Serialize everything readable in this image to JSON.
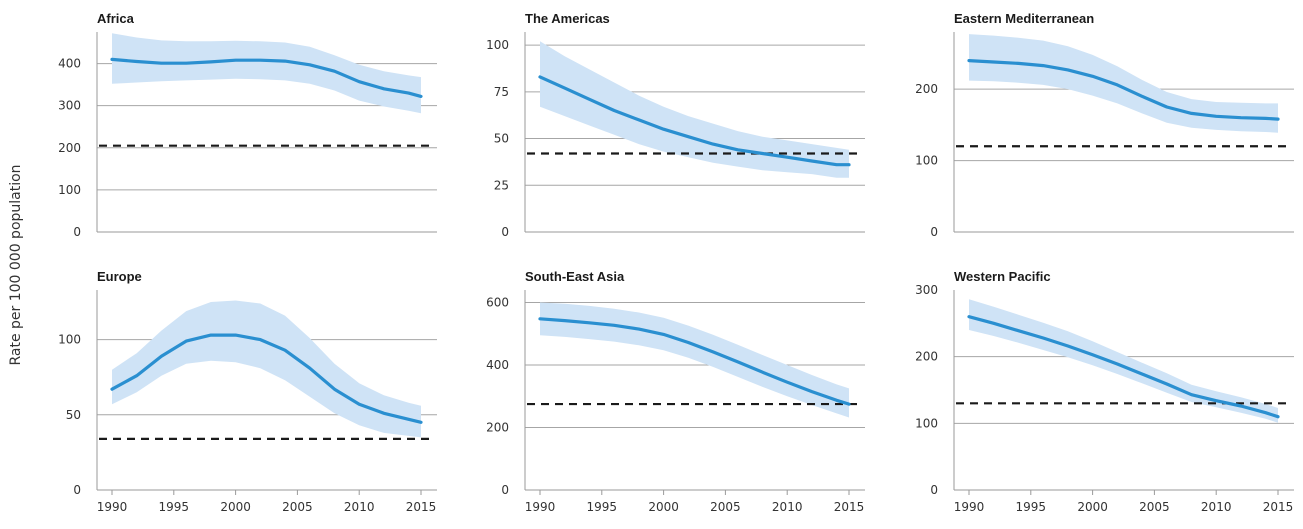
{
  "figure": {
    "ylabel": "Rate per 100 000 population",
    "colors": {
      "line": "#2a8fd0",
      "band": "#cfe3f6",
      "grid": "#a6a6a6",
      "axis": "#9a9a9a",
      "reference": "#1a1a1a"
    }
  },
  "chart_data": [
    {
      "type": "line",
      "title": "Africa",
      "xlim": [
        1990,
        2015
      ],
      "xticks": [
        1990,
        1995,
        2000,
        2005,
        2010,
        2015
      ],
      "show_xticks": false,
      "ylim": [
        0,
        475
      ],
      "yticks": [
        0,
        100,
        200,
        300,
        400
      ],
      "grid": [
        100,
        200,
        300,
        400
      ],
      "reference": 205,
      "x": [
        1990,
        1992,
        1994,
        1996,
        1998,
        2000,
        2002,
        2004,
        2006,
        2008,
        2010,
        2012,
        2014,
        2015
      ],
      "y": [
        410,
        405,
        401,
        401,
        404,
        408,
        408,
        406,
        397,
        382,
        357,
        340,
        330,
        322
      ],
      "lower": [
        352,
        355,
        358,
        360,
        362,
        364,
        363,
        360,
        352,
        336,
        312,
        298,
        288,
        282
      ],
      "upper": [
        472,
        462,
        455,
        453,
        453,
        454,
        453,
        450,
        440,
        420,
        397,
        382,
        372,
        368
      ]
    },
    {
      "type": "line",
      "title": "The Americas",
      "xlim": [
        1990,
        2015
      ],
      "xticks": [
        1990,
        1995,
        2000,
        2005,
        2010,
        2015
      ],
      "show_xticks": false,
      "ylim": [
        0,
        107
      ],
      "yticks": [
        0,
        25,
        50,
        75,
        100
      ],
      "grid": [
        25,
        50,
        75,
        100
      ],
      "reference": 42,
      "x": [
        1990,
        1992,
        1994,
        1996,
        1998,
        2000,
        2002,
        2004,
        2006,
        2008,
        2010,
        2012,
        2014,
        2015
      ],
      "y": [
        83,
        77,
        71,
        65,
        60,
        55,
        51,
        47,
        44,
        42,
        40,
        38,
        36,
        36
      ],
      "lower": [
        67,
        62,
        57,
        52,
        47,
        43,
        40,
        37,
        35,
        33,
        32,
        31,
        29,
        29
      ],
      "upper": [
        102,
        94,
        87,
        80,
        73,
        67,
        62,
        58,
        54,
        51,
        49,
        47,
        45,
        44
      ]
    },
    {
      "type": "line",
      "title": "Eastern Mediterranean",
      "xlim": [
        1990,
        2015
      ],
      "xticks": [
        1990,
        1995,
        2000,
        2005,
        2010,
        2015
      ],
      "show_xticks": false,
      "ylim": [
        0,
        280
      ],
      "yticks": [
        0,
        100,
        200
      ],
      "grid": [
        100,
        200
      ],
      "reference": 120,
      "x": [
        1990,
        1992,
        1994,
        1996,
        1998,
        2000,
        2002,
        2004,
        2006,
        2008,
        2010,
        2012,
        2014,
        2015
      ],
      "y": [
        240,
        238,
        236,
        233,
        227,
        218,
        206,
        190,
        175,
        166,
        162,
        160,
        159,
        158
      ],
      "lower": [
        212,
        211,
        209,
        206,
        200,
        191,
        180,
        166,
        153,
        146,
        143,
        141,
        140,
        139
      ],
      "upper": [
        277,
        275,
        272,
        268,
        260,
        248,
        232,
        213,
        196,
        186,
        182,
        181,
        180,
        180
      ]
    },
    {
      "type": "line",
      "title": "Europe",
      "xlim": [
        1990,
        2015
      ],
      "xticks": [
        1990,
        1995,
        2000,
        2005,
        2010,
        2015
      ],
      "show_xticks": true,
      "ylim": [
        0,
        133
      ],
      "yticks": [
        0,
        50,
        100
      ],
      "grid": [
        50,
        100
      ],
      "reference": 34,
      "x": [
        1990,
        1992,
        1994,
        1996,
        1998,
        2000,
        2002,
        2004,
        2006,
        2008,
        2010,
        2012,
        2014,
        2015
      ],
      "y": [
        67,
        76,
        89,
        99,
        103,
        103,
        100,
        93,
        81,
        67,
        57,
        51,
        47,
        45
      ],
      "lower": [
        57,
        65,
        76,
        84,
        86,
        85,
        81,
        73,
        62,
        51,
        43,
        38,
        36,
        35
      ],
      "upper": [
        80,
        91,
        106,
        119,
        125,
        126,
        124,
        116,
        101,
        84,
        71,
        63,
        58,
        56
      ]
    },
    {
      "type": "line",
      "title": "South-East Asia",
      "xlim": [
        1990,
        2015
      ],
      "xticks": [
        1990,
        1995,
        2000,
        2005,
        2010,
        2015
      ],
      "show_xticks": true,
      "ylim": [
        0,
        640
      ],
      "yticks": [
        0,
        200,
        400,
        600
      ],
      "grid": [
        200,
        400,
        600
      ],
      "reference": 275,
      "x": [
        1990,
        1992,
        1994,
        1996,
        1998,
        2000,
        2002,
        2004,
        2006,
        2008,
        2010,
        2012,
        2014,
        2015
      ],
      "y": [
        548,
        542,
        535,
        527,
        515,
        498,
        472,
        442,
        410,
        377,
        345,
        315,
        287,
        275
      ],
      "lower": [
        495,
        490,
        483,
        475,
        463,
        447,
        423,
        394,
        362,
        330,
        300,
        272,
        245,
        232
      ],
      "upper": [
        600,
        596,
        589,
        580,
        568,
        551,
        526,
        497,
        465,
        432,
        400,
        368,
        338,
        325
      ]
    },
    {
      "type": "line",
      "title": "Western Pacific",
      "xlim": [
        1990,
        2015
      ],
      "xticks": [
        1990,
        1995,
        2000,
        2005,
        2010,
        2015
      ],
      "show_xticks": true,
      "ylim": [
        0,
        300
      ],
      "yticks": [
        0,
        100,
        200,
        300
      ],
      "grid": [
        100,
        200
      ],
      "reference": 130,
      "x": [
        1990,
        1992,
        1994,
        1996,
        1998,
        2000,
        2002,
        2004,
        2006,
        2008,
        2010,
        2012,
        2014,
        2015
      ],
      "y": [
        260,
        250,
        239,
        228,
        216,
        203,
        189,
        174,
        159,
        143,
        134,
        126,
        116,
        110
      ],
      "lower": [
        240,
        231,
        221,
        210,
        199,
        187,
        174,
        160,
        146,
        132,
        124,
        116,
        107,
        101
      ],
      "upper": [
        286,
        275,
        263,
        251,
        238,
        223,
        207,
        191,
        175,
        158,
        148,
        139,
        129,
        123
      ]
    }
  ]
}
